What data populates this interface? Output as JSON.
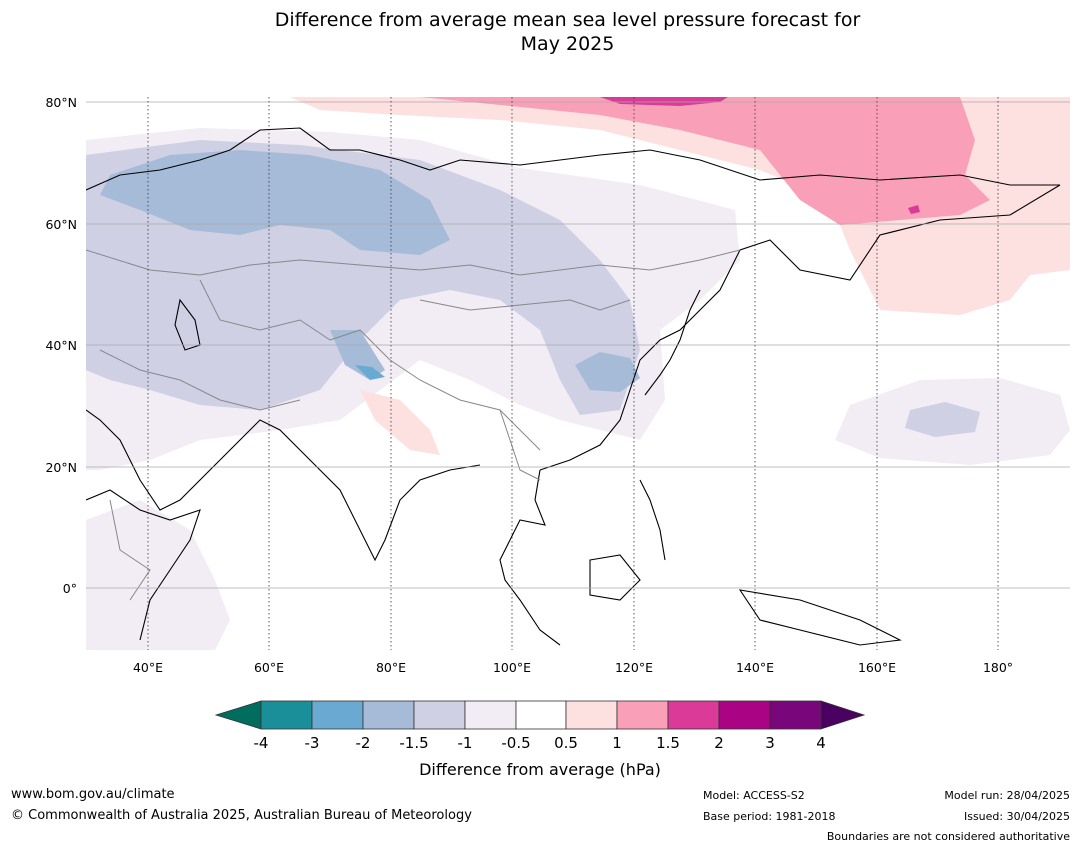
{
  "title": {
    "line1": "Difference from average mean sea level pressure forecast for",
    "line2": "May 2025"
  },
  "map": {
    "lat_labels": [
      "80°N",
      "60°N",
      "40°N",
      "20°N",
      "0°"
    ],
    "lon_labels": [
      "40°E",
      "60°E",
      "80°E",
      "100°E",
      "120°E",
      "140°E",
      "160°E",
      "180°"
    ],
    "extent": {
      "lon_min": 30,
      "lon_max": 192,
      "lat_min": -10,
      "lat_max": 80
    }
  },
  "colorbar": {
    "title": "Difference from average (hPa)",
    "tick_labels": [
      "-4",
      "-3",
      "-2",
      "-1.5",
      "-1",
      "-0.5",
      "0.5",
      "1",
      "1.5",
      "2",
      "3",
      "4"
    ],
    "colors": [
      "#006d5e",
      "#1a8f99",
      "#6aaad2",
      "#a6bbd8",
      "#cfd0e4",
      "#f2ecf4",
      "#ffffff",
      "#fde0e0",
      "#f9a0b8",
      "#dc3a99",
      "#aa0484",
      "#7a067b",
      "#4a0060"
    ]
  },
  "footer": {
    "website": "www.bom.gov.au/climate",
    "copyright": "© Commonwealth of Australia 2025, Australian Bureau of Meteorology",
    "model": "Model: ACCESS-S2",
    "base_period": "Base period: 1981-2018",
    "model_run": "Model run: 28/04/2025",
    "issued": "Issued: 30/04/2025",
    "disclaimer": "Boundaries are not considered authoritative"
  }
}
